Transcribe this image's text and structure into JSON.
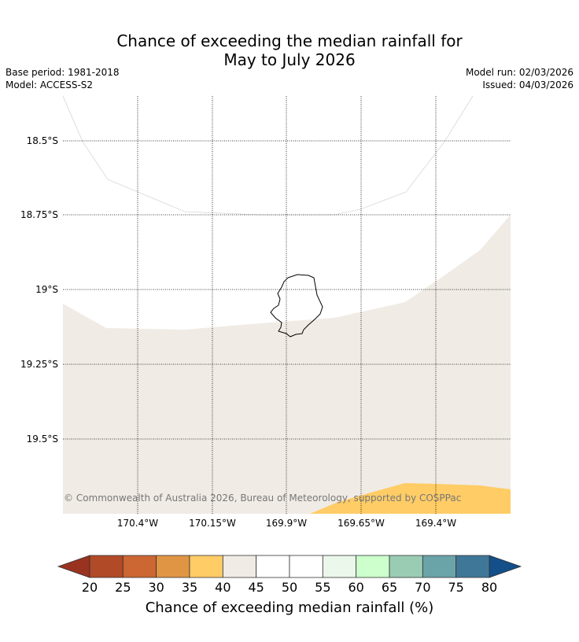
{
  "title": {
    "line1": "Chance of exceeding the median rainfall for",
    "line2": "May to July 2026"
  },
  "meta": {
    "base_period": "Base period: 1981-2018",
    "model": "Model: ACCESS-S2",
    "model_run": "Model run: 02/03/2026",
    "issued": "Issued: 04/03/2026"
  },
  "map": {
    "lat_labels": [
      "18.5°S",
      "18.75°S",
      "19°S",
      "19.25°S",
      "19.5°S"
    ],
    "lon_labels": [
      "170.4°W",
      "170.15°W",
      "169.9°W",
      "169.65°W",
      "169.4°W"
    ],
    "copyright": "© Commonwealth of Australia 2026, Bureau of Meteorology, supported by COSPPac",
    "region_colors": {
      "band_40_45": "#f0ebe5",
      "band_35_40": "#ffcc66",
      "island_outline": "#000000"
    }
  },
  "colorbar": {
    "ticks": [
      "20",
      "25",
      "30",
      "35",
      "40",
      "45",
      "50",
      "55",
      "60",
      "65",
      "70",
      "75",
      "80"
    ],
    "colors": [
      "#b14a26",
      "#cc6633",
      "#e09545",
      "#ffcc66",
      "#f0ebe5",
      "#ffffff",
      "#ffffff",
      "#eaf7ea",
      "#ccffcc",
      "#99ccb3",
      "#6aa3a8",
      "#3f7799"
    ],
    "under_color": "#99331f",
    "over_color": "#134f88",
    "label": "Chance of exceeding median rainfall (%)"
  }
}
